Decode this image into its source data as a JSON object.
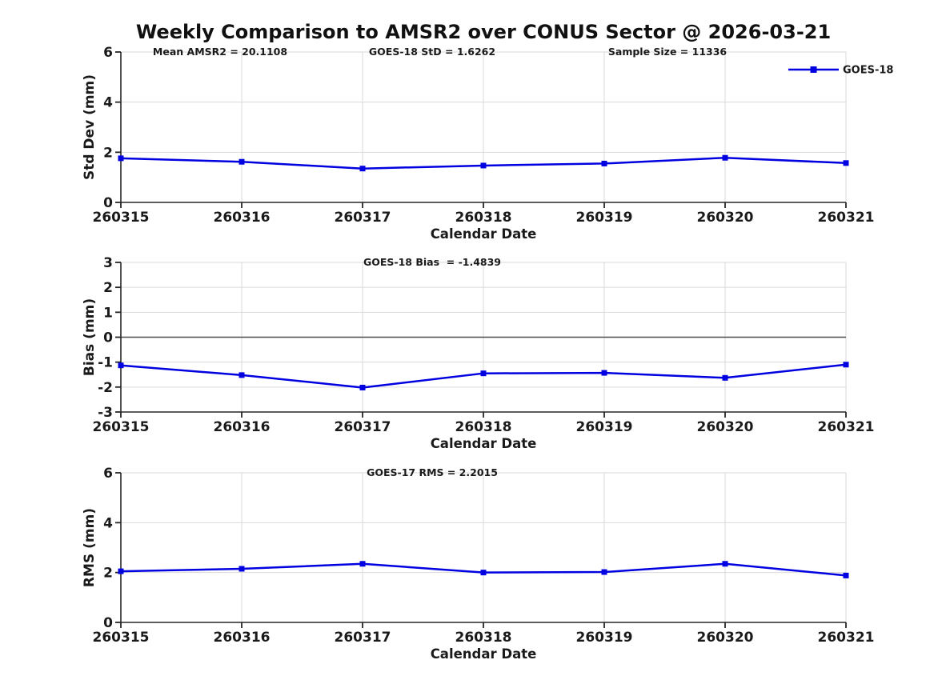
{
  "title": "Weekly Comparison to AMSR2 over CONUS Sector @ 2026-03-21",
  "colors": {
    "line": "#0000e0",
    "grid": "#d9d9d9",
    "spine": "#262626",
    "zero_line": "#4d4d4d",
    "text": "#1a1a1a",
    "background": "#ffffff"
  },
  "legend": {
    "label": "GOES-18",
    "position": "upper-right-first-panel"
  },
  "chart_data": [
    {
      "type": "line",
      "panel": "std-dev",
      "annotations": [
        "Mean AMSR2 = 20.1108",
        "GOES-18 StD = 1.6262",
        "Sample Size = 11336"
      ],
      "categories": [
        "260315",
        "260316",
        "260317",
        "260318",
        "260319",
        "260320",
        "260321"
      ],
      "series": [
        {
          "name": "GOES-18",
          "values": [
            1.76,
            1.62,
            1.35,
            1.47,
            1.55,
            1.78,
            1.57
          ]
        }
      ],
      "xlabel": "Calendar Date",
      "ylabel": "Std Dev (mm)",
      "ylim": [
        0,
        6
      ],
      "yticks": [
        0,
        2,
        4,
        6
      ],
      "grid": true,
      "zero_line": false,
      "show_legend": true
    },
    {
      "type": "line",
      "panel": "bias",
      "annotations": [
        "GOES-18 Bias  = -1.4839"
      ],
      "categories": [
        "260315",
        "260316",
        "260317",
        "260318",
        "260319",
        "260320",
        "260321"
      ],
      "series": [
        {
          "name": "GOES-18",
          "values": [
            -1.13,
            -1.52,
            -2.02,
            -1.45,
            -1.43,
            -1.63,
            -1.1
          ]
        }
      ],
      "xlabel": "Calendar Date",
      "ylabel": "Bias (mm)",
      "ylim": [
        -3,
        3
      ],
      "yticks": [
        -3,
        -2,
        -1,
        0,
        1,
        2,
        3
      ],
      "grid": true,
      "zero_line": true,
      "show_legend": false
    },
    {
      "type": "line",
      "panel": "rms",
      "annotations": [
        "GOES-17 RMS = 2.2015"
      ],
      "categories": [
        "260315",
        "260316",
        "260317",
        "260318",
        "260319",
        "260320",
        "260321"
      ],
      "series": [
        {
          "name": "GOES-18",
          "values": [
            2.05,
            2.15,
            2.35,
            2.0,
            2.02,
            2.35,
            1.88
          ]
        }
      ],
      "xlabel": "Calendar Date",
      "ylabel": "RMS (mm)",
      "ylim": [
        0,
        6
      ],
      "yticks": [
        0,
        2,
        4,
        6
      ],
      "grid": true,
      "zero_line": false,
      "show_legend": false
    }
  ]
}
